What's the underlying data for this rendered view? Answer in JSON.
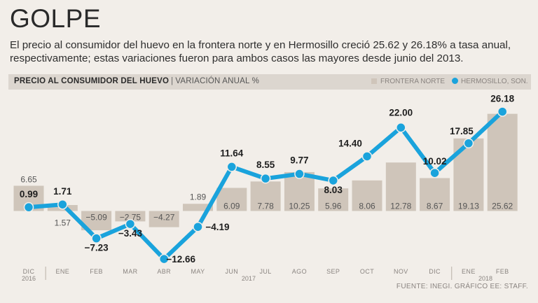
{
  "headline": "GOLPE",
  "subtitle": "El precio al consumidor del huevo en la frontera norte y en Hermosillo creció 25.62 y 26.18% a tasa anual, respectivamente; estas variaciones fueron para ambos casos las mayores desde junio del 2013.",
  "header": {
    "title": "PRECIO AL CONSUMIDOR DEL HUEVO",
    "separator": "|",
    "subtitle": "VARIACIÓN ANUAL %"
  },
  "source": "FUENTE: INEGI. GRÁFICO EE: STAFF.",
  "colors": {
    "bars": "#cfc5ba",
    "line": "#1aa3dc",
    "background": "#f2eee9"
  },
  "chart_data": {
    "type": "bar+line",
    "title": "PRECIO AL CONSUMIDOR DEL HUEVO | VARIACIÓN ANUAL %",
    "categories": [
      "DIC",
      "ENE",
      "FEB",
      "MAR",
      "ABR",
      "MAY",
      "JUN",
      "JUL",
      "AGO",
      "SEP",
      "OCT",
      "NOV",
      "DIC",
      "ENE",
      "FEB"
    ],
    "year_labels": [
      {
        "label": "2016",
        "index": 0
      },
      {
        "label": "2017",
        "index": 6.5
      },
      {
        "label": "2018",
        "index": 13.5
      }
    ],
    "series": [
      {
        "name": "FRONTERA NORTE",
        "kind": "bar",
        "values": [
          6.65,
          1.57,
          -5.09,
          -2.75,
          -4.27,
          1.89,
          6.09,
          7.78,
          10.25,
          5.96,
          8.06,
          12.78,
          8.67,
          19.13,
          25.62
        ],
        "labels": [
          "6.65",
          "1.57",
          "−5.09",
          "−2.75",
          "−4.27",
          "1.89",
          "6.09",
          "7.78",
          "10.25",
          "5.96",
          "8.06",
          "12.78",
          "8.67",
          "19.13",
          "25.62"
        ]
      },
      {
        "name": "HERMOSILLO, SON.",
        "kind": "line",
        "values": [
          0.99,
          1.71,
          -7.23,
          -3.43,
          -12.66,
          -4.19,
          11.64,
          8.55,
          9.77,
          8.03,
          14.4,
          22.0,
          10.02,
          17.85,
          26.18
        ],
        "labels": [
          "0.99",
          "1.71",
          "−7.23",
          "−3.43",
          "−12.66",
          "−4.19",
          "11.64",
          "8.55",
          "9.77",
          "8.03",
          "14.40",
          "22.00",
          "10.02",
          "17.85",
          "26.18"
        ]
      }
    ],
    "ylim": [
      -13,
      27
    ],
    "xlabel": "",
    "ylabel": "",
    "grid": false,
    "legend": "top-right"
  }
}
